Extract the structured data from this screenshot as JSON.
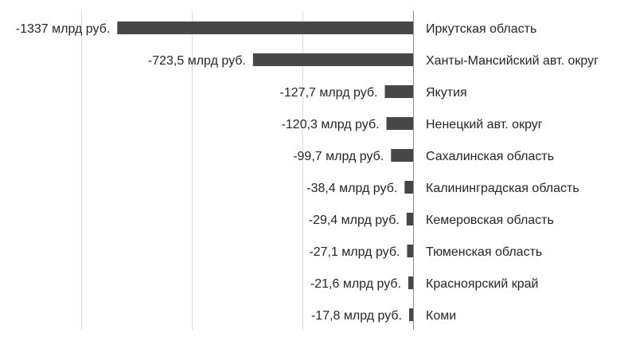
{
  "chart_data": {
    "type": "bar",
    "orientation": "horizontal",
    "title": "",
    "xlabel": "",
    "ylabel": "",
    "xlim": [
      -1500,
      0
    ],
    "grid": true,
    "legend": "none",
    "bar_color": "#474747",
    "categories": [
      "Иркутская область",
      "Ханты-Мансийский авт. округ",
      "Якутия",
      "Ненецкий авт. округ",
      "Сахалинская область",
      "Калининградская область",
      "Кемеровская область",
      "Тюменская область",
      "Красноярский край",
      "Коми"
    ],
    "values": [
      -1337,
      -723.5,
      -127.7,
      -120.3,
      -99.7,
      -38.4,
      -29.4,
      -27.1,
      -21.6,
      -17.8
    ],
    "data_labels": [
      "-1337 млрд руб.",
      "-723,5 млрд руб.",
      "-127,7 млрд руб.",
      "-120,3 млрд руб.",
      "-99,7 млрд руб.",
      "-38,4 млрд руб.",
      "-29,4 млрд руб.",
      "-27,1 млрд руб.",
      "-21,6 млрд руб.",
      "-17,8 млрд руб."
    ]
  }
}
